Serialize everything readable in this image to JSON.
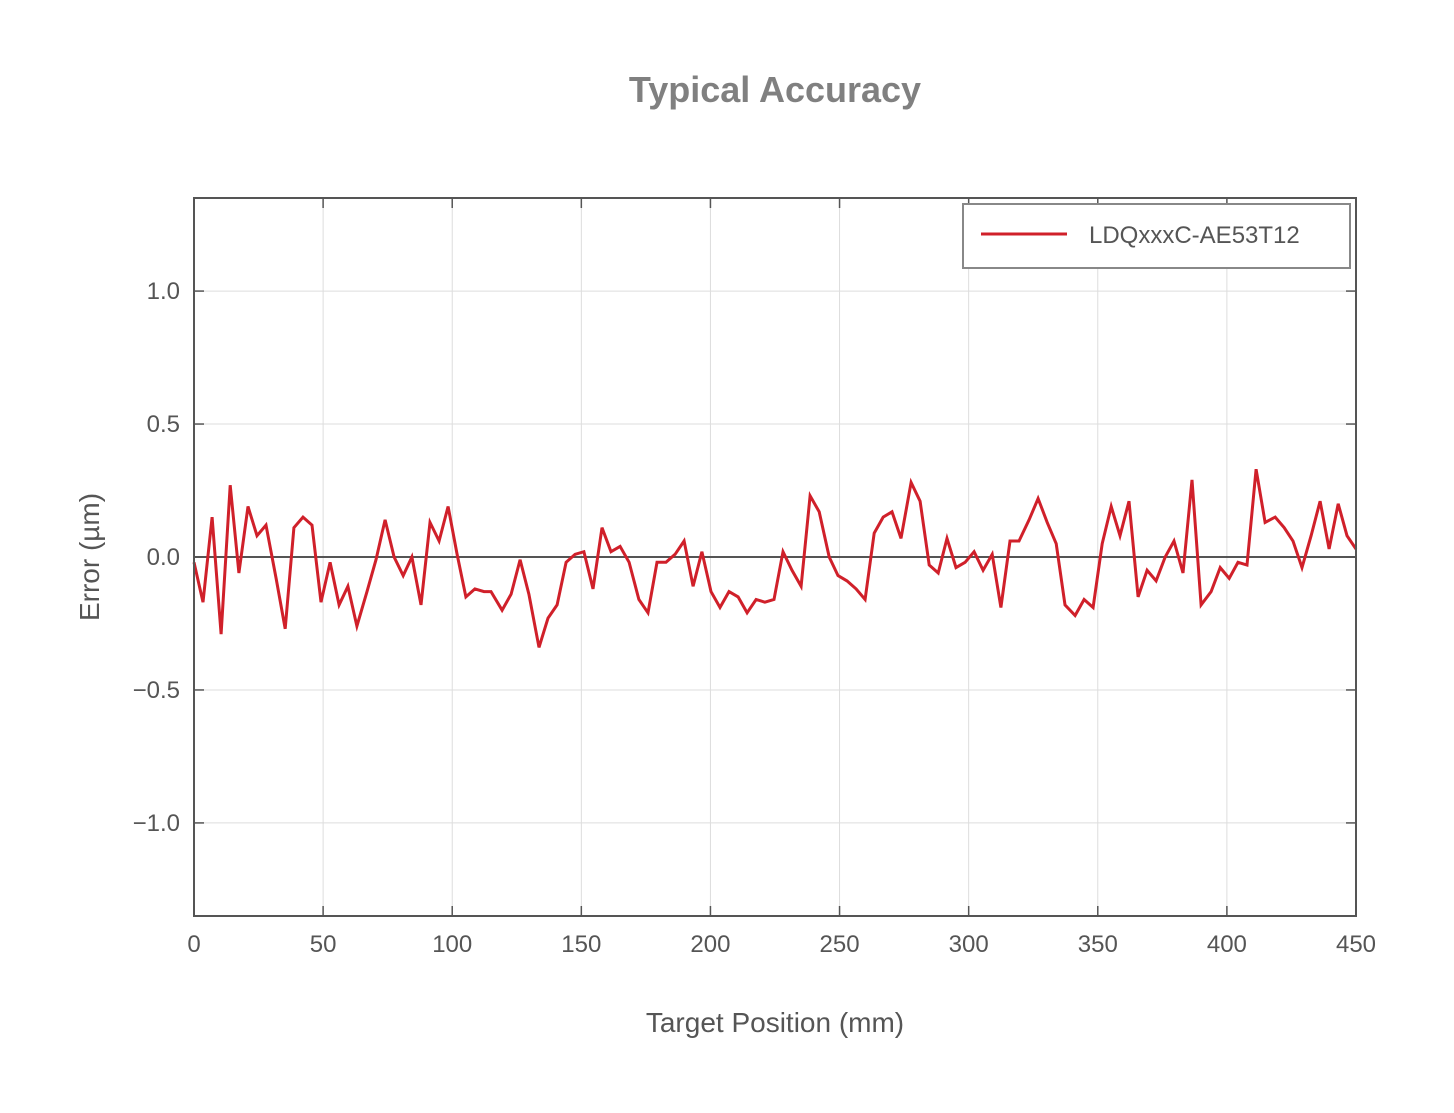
{
  "chart_data": {
    "type": "line",
    "title": "Typical Accuracy",
    "xlabel": "Target Position (mm)",
    "ylabel": "Error (µm)",
    "xlim": [
      0,
      450
    ],
    "ylim": [
      -1.35,
      1.35
    ],
    "xticks": [
      0,
      50,
      100,
      150,
      200,
      250,
      300,
      350,
      400,
      450
    ],
    "xtick_labels": [
      "0",
      "50",
      "100",
      "150",
      "200",
      "250",
      "300",
      "350",
      "400",
      "450"
    ],
    "yticks": [
      -1.0,
      -0.5,
      0.0,
      0.5,
      1.0
    ],
    "ytick_labels": [
      "−1.0",
      "−0.5",
      "0.0",
      "0.5",
      "1.0"
    ],
    "grid": true,
    "zero_line": true,
    "legend_position": "upper right",
    "legend": [
      "LDQxxxC-AE53T12"
    ],
    "colors": {
      "series": "#d0202a",
      "axes": "#555555",
      "grid": "#dddddd",
      "title": "#808080"
    },
    "series": [
      {
        "name": "LDQxxxC-AE53T12",
        "x": [
          0.0,
          3.5,
          7.0,
          10.5,
          14.0,
          17.4,
          20.9,
          24.4,
          27.9,
          31.8,
          35.3,
          38.7,
          42.2,
          45.7,
          49.2,
          52.7,
          56.2,
          59.6,
          63.1,
          67.0,
          70.5,
          74.0,
          77.5,
          81.0,
          84.4,
          87.9,
          91.4,
          94.9,
          98.4,
          101.9,
          105.3,
          108.8,
          112.3,
          115.0,
          119.3,
          122.8,
          126.3,
          129.7,
          133.6,
          137.1,
          140.6,
          144.1,
          147.6,
          151.0,
          154.5,
          158.0,
          161.5,
          165.0,
          168.5,
          172.3,
          175.8,
          179.3,
          182.8,
          186.3,
          189.8,
          193.3,
          196.7,
          200.2,
          203.7,
          207.2,
          210.7,
          214.2,
          217.7,
          221.1,
          224.6,
          228.1,
          231.6,
          235.1,
          238.6,
          242.1,
          246.0,
          249.4,
          252.9,
          256.4,
          259.9,
          263.4,
          266.9,
          270.3,
          273.8,
          277.7,
          281.2,
          284.7,
          288.2,
          291.6,
          295.1,
          298.6,
          302.1,
          305.6,
          309.1,
          312.5,
          316.0,
          319.5,
          323.4,
          326.9,
          330.4,
          333.9,
          337.3,
          341.2,
          344.7,
          348.2,
          351.7,
          355.2,
          358.6,
          362.1,
          365.6,
          369.1,
          372.6,
          376.1,
          379.5,
          383.0,
          386.5,
          390.0,
          393.9,
          397.4,
          400.9,
          404.3,
          407.8,
          411.3,
          414.8,
          418.7,
          422.2,
          425.6,
          429.1,
          432.6,
          436.1,
          439.6,
          443.1,
          446.5,
          450.0
        ],
        "y": [
          -0.02,
          -0.17,
          0.15,
          -0.29,
          0.27,
          -0.06,
          0.19,
          0.08,
          0.12,
          -0.08,
          -0.27,
          0.11,
          0.15,
          0.12,
          -0.17,
          -0.02,
          -0.18,
          -0.11,
          -0.26,
          -0.13,
          -0.01,
          0.14,
          0.0,
          -0.07,
          0.0,
          -0.18,
          0.13,
          0.06,
          0.19,
          0.01,
          -0.15,
          -0.12,
          -0.13,
          -0.13,
          -0.2,
          -0.14,
          -0.01,
          -0.14,
          -0.34,
          -0.23,
          -0.18,
          -0.02,
          0.01,
          0.02,
          -0.12,
          0.11,
          0.02,
          0.04,
          -0.02,
          -0.16,
          -0.21,
          -0.02,
          -0.02,
          0.01,
          0.06,
          -0.11,
          0.02,
          -0.13,
          -0.19,
          -0.13,
          -0.15,
          -0.21,
          -0.16,
          -0.17,
          -0.16,
          0.02,
          -0.05,
          -0.11,
          0.23,
          0.17,
          0.0,
          -0.07,
          -0.09,
          -0.12,
          -0.16,
          0.09,
          0.15,
          0.17,
          0.07,
          0.28,
          0.21,
          -0.03,
          -0.06,
          0.07,
          -0.04,
          -0.02,
          0.02,
          -0.05,
          0.01,
          -0.19,
          0.06,
          0.06,
          0.14,
          0.22,
          0.13,
          0.05,
          -0.18,
          -0.22,
          -0.16,
          -0.19,
          0.05,
          0.19,
          0.08,
          0.21,
          -0.15,
          -0.05,
          -0.09,
          0.0,
          0.06,
          -0.06,
          0.29,
          -0.18,
          -0.13,
          -0.04,
          -0.08,
          -0.02,
          -0.03,
          0.33,
          0.13,
          0.15,
          0.11,
          0.06,
          -0.04,
          0.08,
          0.21,
          0.03,
          0.2,
          0.08,
          0.03
        ]
      }
    ]
  }
}
